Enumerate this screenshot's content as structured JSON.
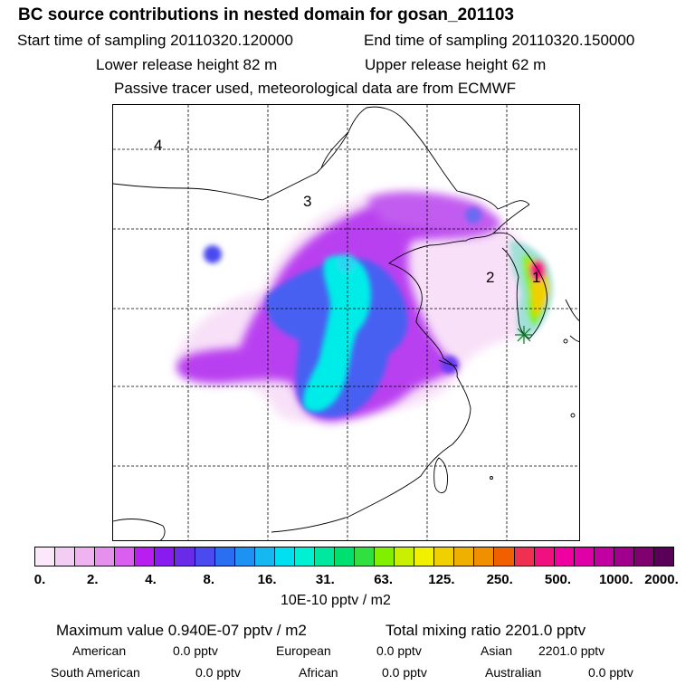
{
  "header": {
    "title": "BC  source contributions in nested domain for gosan_201103",
    "start_label": "Start time of sampling 20110320.120000",
    "end_label": "End time of sampling 20110320.150000",
    "lower_label": "Lower release height   82 m",
    "upper_label": "Upper release height   62 m",
    "tracer_label": "Passive tracer used, meteorological data are from ECMWF"
  },
  "map": {
    "region_labels": [
      "1",
      "2",
      "3",
      "4"
    ],
    "receptor_marker": "star-marker"
  },
  "colorbar": {
    "colors": [
      "#fbe8fb",
      "#f4cdf4",
      "#eeb3f0",
      "#e690ee",
      "#da5ff0",
      "#b81ef0",
      "#8a1bf0",
      "#6a2be8",
      "#4a4af0",
      "#2a6ef2",
      "#1e92f2",
      "#16b8f2",
      "#00e0f0",
      "#00f0d4",
      "#00e8a0",
      "#00e070",
      "#30e040",
      "#80f000",
      "#c8f000",
      "#f0f000",
      "#f0d000",
      "#f0b000",
      "#f09000",
      "#f06000",
      "#f03050",
      "#f01080",
      "#f000a0",
      "#e000a8",
      "#c000a0",
      "#a0008c",
      "#800070",
      "#5a0058"
    ],
    "tick_labels": [
      "0.",
      "2.",
      "4.",
      "8.",
      "16.",
      "31.",
      "63.",
      "125.",
      "250.",
      "500.",
      "1000.",
      "2000."
    ],
    "unit_label": "10E-10 pptv / m2"
  },
  "summary": {
    "max_value": "Maximum value  0.940E-07 pptv / m2",
    "total_mixing": "Total mixing ratio     2201.0 pptv",
    "american_label": "American",
    "american_value": "0.0 pptv",
    "european_label": "European",
    "european_value": "0.0 pptv",
    "asian_label": "Asian",
    "asian_value": "2201.0 pptv",
    "south_american_label": "South American",
    "south_american_value": "0.0 pptv",
    "african_label": "African",
    "african_value": "0.0 pptv",
    "australian_label": "Australian",
    "australian_value": "0.0 pptv"
  }
}
